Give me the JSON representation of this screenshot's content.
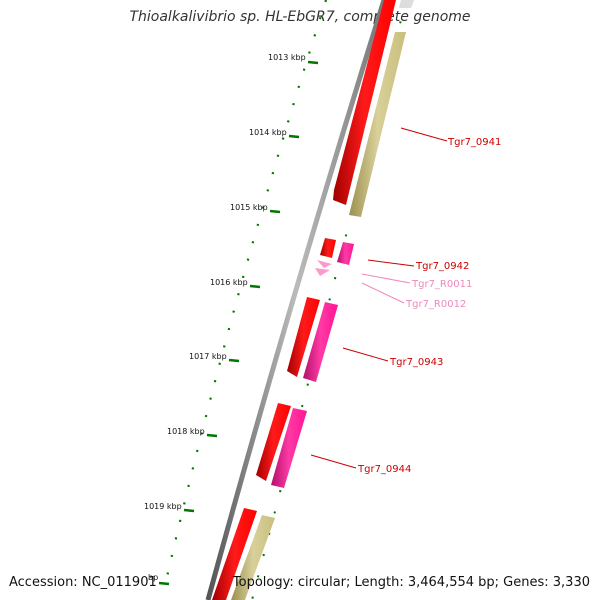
{
  "title": "Thioalkalivibrio sp. HL-EbGR7, complete genome",
  "footer": {
    "accession": "Accession: NC_011901",
    "bp_unit": "bp",
    "summary": "Topology: circular; Length: 3,464,554 bp; Genes: 3,330"
  },
  "ticks": [
    "1013 kbp",
    "1014 kbp",
    "1015 kbp",
    "1016 kbp",
    "1017 kbp",
    "1018 kbp",
    "1019 kbp"
  ],
  "genes": [
    {
      "name": "Tgr7_0941",
      "color": "#cc0000"
    },
    {
      "name": "Tgr7_0942",
      "color": "#cc0000"
    },
    {
      "name": "Tgr7_R0011",
      "color": "#ee88bb"
    },
    {
      "name": "Tgr7_R0012",
      "color": "#ee88bb"
    },
    {
      "name": "Tgr7_0943",
      "color": "#cc0000"
    },
    {
      "name": "Tgr7_0944",
      "color": "#cc0000"
    }
  ],
  "colors": {
    "cds": "#ff0000",
    "cds_shade": "#b30000",
    "cog_khaki": "#c8bf7c",
    "cog_pink": "#ff1493",
    "rna": "#ff99cc",
    "backbone": "#888888",
    "tick": "#007700"
  }
}
